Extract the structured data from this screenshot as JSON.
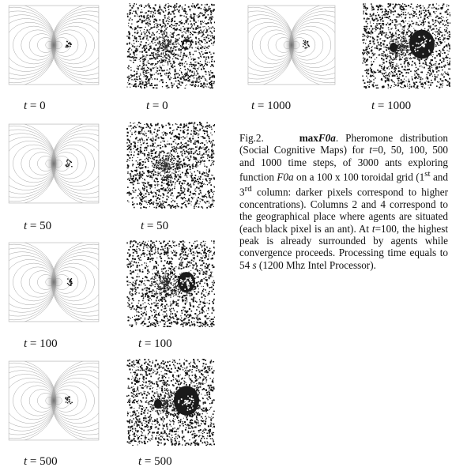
{
  "figure": {
    "label_var": "t",
    "rows": [
      {
        "step": "0",
        "contour_label": "0",
        "agents_label": "0",
        "agent_blob": "small"
      },
      {
        "step": "50",
        "contour_label": "50",
        "agents_label": "50",
        "agent_blob": "none"
      },
      {
        "step": "100",
        "contour_label": "100",
        "agents_label": "100",
        "agent_blob": "medium"
      },
      {
        "step": "500",
        "contour_label": "500",
        "agents_label": "500",
        "agent_blob": "large"
      },
      {
        "step": "1000",
        "contour_label": "1000",
        "agents_label": "1000",
        "agent_blob": "large"
      }
    ]
  },
  "caption": {
    "fig_number": "Fig.2.",
    "title_bold": "max",
    "title_bold_italic": "F0a",
    "part1": ". Pheromone distribution (Social Cognitive Maps) for ",
    "t_var": "t",
    "part2": "=0, 50, 100, 500 and 1000 time steps, of 3000 ants exploring function ",
    "func": "F0a",
    "part3": " on a 100 x 100 toroidal grid (1",
    "sup1": "st",
    "part4": " and 3",
    "sup2": "rd",
    "part5": " column: darker pixels correspond to higher concentrations). Columns 2 and 4 correspond to the geographical place where agents are situated (each black pixel is an ant). At ",
    "t_var2": "t",
    "part6": "=100, the highest peak is already surrounded by agents while convergence proceeds. Processing time equals to 54 ",
    "unit": "s",
    "part7": " (1200 Mhz Intel Processor)."
  }
}
